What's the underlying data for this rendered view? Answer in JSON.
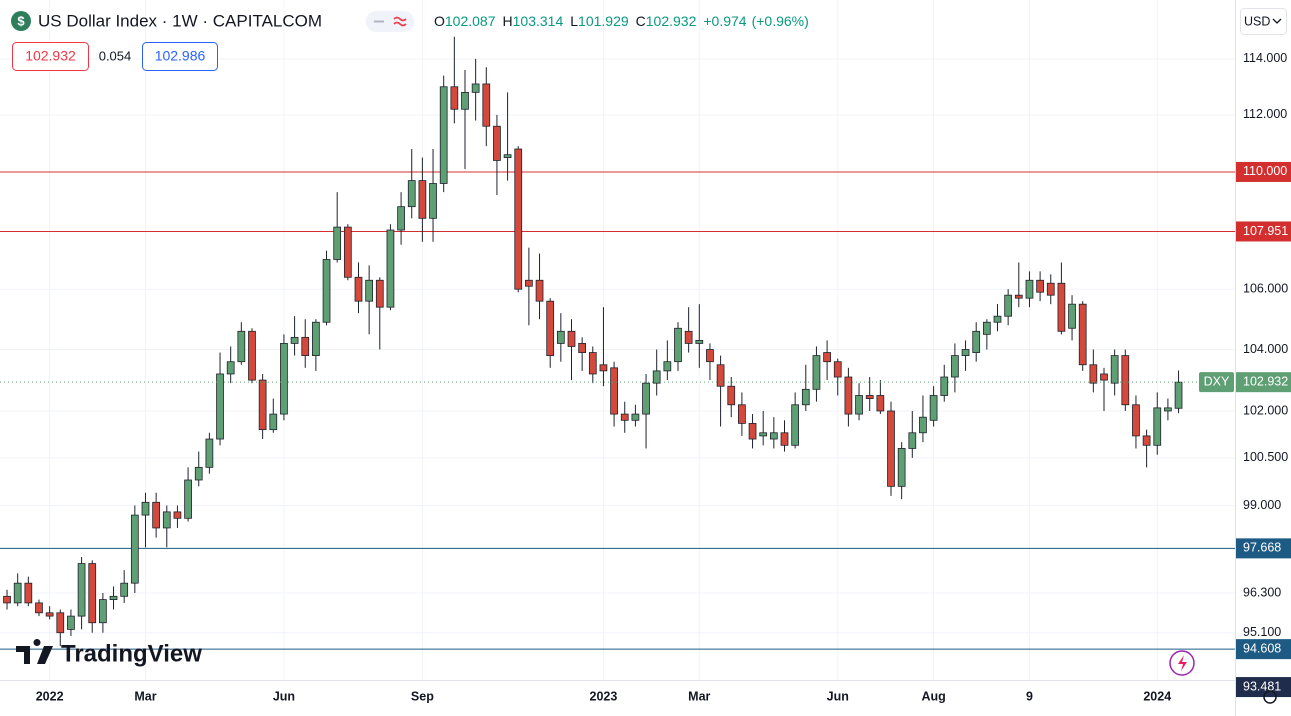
{
  "chart_data": {
    "type": "candlestick",
    "title": "US Dollar Index · 1W · CAPITALCOM",
    "symbol_icon": "$",
    "ohlc_labels": [
      "O",
      "H",
      "L",
      "C"
    ],
    "change": 0.974,
    "change_label": "+0.974",
    "change_percent": 0.96,
    "change_percent_label": "(+0.96%)",
    "sell": 102.932,
    "spread": 0.054,
    "buy": 102.986,
    "currency": "USD",
    "symbol_tag": "DXY",
    "brand": "TradingView",
    "up_color": "#5f9f74",
    "down_color": "#d4493b",
    "log_scale": true,
    "grid": true,
    "ylim": [
      93.69,
      116.14
    ],
    "xlim": [
      -0.66,
      115.3
    ],
    "yticks": [
      {
        "value": 114,
        "label": "114.000"
      },
      {
        "value": 112,
        "label": "112.000"
      },
      {
        "value": 106,
        "label": "106.000"
      },
      {
        "value": 104,
        "label": "104.000"
      },
      {
        "value": 102,
        "label": "102.000"
      },
      {
        "value": 100.5,
        "label": "100.500"
      },
      {
        "value": 99,
        "label": "99.000"
      },
      {
        "value": 96.3,
        "label": "96.300"
      },
      {
        "value": 95.1,
        "label": "95.100"
      }
    ],
    "xticks": [
      {
        "value": 4,
        "label": "2022"
      },
      {
        "value": 13,
        "label": "Mar"
      },
      {
        "value": 26,
        "label": "Jun"
      },
      {
        "value": 39,
        "label": "Sep"
      },
      {
        "value": 56,
        "label": "2023"
      },
      {
        "value": 65,
        "label": "Mar"
      },
      {
        "value": 78,
        "label": "Jun"
      },
      {
        "value": 87,
        "label": "Aug"
      },
      {
        "value": 96,
        "label": "9"
      },
      {
        "value": 108,
        "label": "2024"
      }
    ],
    "levels": [
      {
        "value": 110,
        "label": "110.000",
        "color": "#d32f2f"
      },
      {
        "value": 107.951,
        "color": "#d32f2f"
      },
      {
        "value": 97.668,
        "color": "#1d5a84"
      },
      {
        "value": 94.608,
        "color": "#1d5a84"
      },
      {
        "value": 93.481,
        "color": "#202c4c"
      }
    ],
    "open": [
      96.2,
      96.0,
      96.6,
      96.0,
      95.7,
      95.7,
      95.2,
      95.6,
      97.2,
      95.4,
      96.1,
      96.2,
      96.6,
      98.7,
      99.1,
      98.3,
      98.8,
      98.6,
      99.8,
      100.2,
      101.1,
      103.2,
      103.6,
      104.6,
      103.0,
      101.4,
      101.9,
      104.2,
      104.4,
      103.8,
      104.9,
      107.0,
      108.1,
      106.4,
      105.6,
      106.3,
      105.4,
      108.0,
      108.8,
      109.7,
      108.4,
      109.6,
      113.0,
      112.2,
      112.8,
      113.1,
      111.6,
      110.5,
      110.8,
      106.3,
      106.3,
      105.6,
      104.2,
      104.6,
      104.2,
      103.9,
      103.5,
      103.4,
      101.9,
      101.7,
      101.9,
      102.9,
      103.3,
      103.6,
      104.6,
      104.2,
      104.0,
      103.5,
      102.8,
      102.2,
      101.6,
      101.2,
      101.1,
      101.3,
      100.9,
      102.2,
      102.7,
      103.9,
      103.6,
      103.1,
      101.9,
      102.5,
      102.5,
      102.0,
      99.6,
      100.8,
      101.3,
      101.7,
      102.5,
      103.1,
      103.8,
      103.9,
      104.5,
      104.9,
      105.1,
      105.8,
      105.7,
      106.3,
      106.2,
      106.2,
      104.7,
      105.5,
      103.5,
      103.2,
      102.9,
      103.8,
      102.2,
      101.2,
      100.9,
      102.0,
      102.087
    ],
    "high": [
      96.4,
      96.9,
      96.8,
      96.1,
      95.9,
      95.8,
      95.8,
      97.4,
      97.3,
      96.3,
      96.5,
      97.0,
      99.0,
      99.4,
      99.4,
      99.0,
      99.0,
      100.2,
      100.7,
      101.3,
      103.9,
      104.1,
      104.9,
      104.7,
      103.2,
      102.4,
      104.5,
      105.1,
      105.0,
      105.0,
      107.3,
      109.3,
      108.2,
      106.9,
      106.8,
      106.4,
      108.2,
      109.3,
      110.8,
      110.5,
      110.8,
      113.4,
      114.8,
      113.6,
      114.0,
      113.7,
      112.0,
      112.8,
      110.9,
      107.4,
      107.2,
      105.7,
      105.2,
      105.0,
      104.4,
      104.1,
      105.4,
      103.6,
      102.3,
      102.2,
      103.2,
      104.0,
      104.3,
      104.9,
      105.4,
      105.5,
      104.2,
      103.8,
      103.1,
      102.6,
      101.9,
      102.0,
      101.8,
      101.7,
      102.6,
      103.5,
      104.1,
      104.3,
      103.7,
      103.4,
      102.9,
      103.1,
      103.0,
      102.3,
      101.0,
      102.0,
      102.5,
      102.8,
      103.5,
      104.2,
      104.3,
      104.9,
      105.0,
      105.5,
      106.0,
      106.9,
      106.6,
      106.6,
      106.5,
      106.9,
      105.8,
      105.6,
      104.0,
      103.4,
      104.0,
      104.0,
      102.5,
      101.4,
      102.6,
      102.4,
      103.314
    ],
    "low": [
      95.8,
      95.9,
      95.9,
      95.6,
      95.5,
      94.7,
      95.0,
      95.2,
      95.1,
      95.1,
      95.8,
      96.0,
      96.3,
      97.7,
      98.0,
      97.7,
      98.3,
      98.5,
      99.6,
      100.0,
      100.9,
      102.9,
      103.5,
      102.9,
      101.1,
      101.3,
      101.7,
      103.8,
      103.4,
      103.3,
      104.8,
      106.9,
      106.3,
      105.2,
      104.5,
      104.0,
      105.3,
      107.5,
      108.4,
      107.6,
      107.6,
      109.3,
      111.7,
      110.1,
      111.8,
      110.9,
      109.2,
      109.7,
      105.9,
      104.8,
      105.0,
      103.4,
      103.6,
      103.0,
      103.3,
      102.9,
      102.8,
      101.5,
      101.3,
      101.5,
      100.8,
      102.5,
      103.0,
      103.3,
      103.9,
      103.4,
      103.0,
      101.5,
      101.8,
      101.2,
      100.8,
      100.9,
      100.8,
      100.7,
      100.8,
      102.0,
      102.3,
      103.0,
      102.5,
      101.5,
      101.7,
      102.0,
      101.9,
      99.3,
      99.2,
      100.5,
      101.0,
      101.5,
      102.3,
      102.6,
      103.3,
      103.6,
      104.0,
      104.6,
      104.8,
      105.4,
      105.4,
      105.6,
      105.5,
      104.5,
      104.3,
      103.3,
      102.6,
      102.0,
      102.5,
      102.0,
      100.8,
      100.2,
      100.6,
      101.7,
      101.929
    ],
    "close": [
      96.0,
      96.6,
      96.0,
      95.7,
      95.6,
      95.1,
      95.6,
      97.2,
      95.4,
      96.1,
      96.2,
      96.6,
      98.7,
      99.1,
      98.3,
      98.8,
      98.6,
      99.8,
      100.2,
      101.1,
      103.2,
      103.6,
      104.6,
      103.0,
      101.4,
      101.9,
      104.2,
      104.4,
      103.8,
      104.9,
      107.0,
      108.1,
      106.4,
      105.6,
      106.3,
      105.4,
      108.0,
      108.8,
      109.7,
      108.4,
      109.6,
      113.0,
      112.2,
      112.8,
      113.1,
      111.6,
      110.4,
      110.6,
      106.0,
      106.1,
      105.6,
      103.8,
      104.6,
      104.1,
      103.9,
      103.2,
      103.3,
      101.9,
      101.7,
      101.9,
      102.9,
      103.3,
      103.6,
      104.7,
      104.2,
      104.3,
      103.6,
      102.8,
      102.2,
      101.6,
      101.1,
      101.3,
      101.3,
      100.9,
      102.2,
      102.7,
      103.8,
      103.6,
      103.1,
      101.9,
      102.5,
      102.4,
      102.0,
      99.6,
      100.8,
      101.3,
      101.8,
      102.5,
      103.1,
      103.8,
      104.0,
      104.6,
      104.9,
      105.1,
      105.8,
      105.7,
      106.3,
      105.9,
      105.8,
      104.6,
      105.5,
      103.5,
      102.9,
      103.0,
      103.8,
      102.2,
      101.2,
      100.9,
      102.1,
      102.1,
      102.932
    ]
  }
}
